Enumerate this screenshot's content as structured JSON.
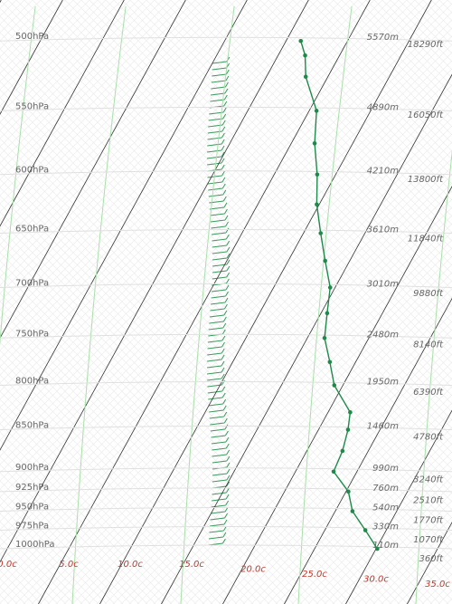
{
  "chart_data": {
    "type": "skewt",
    "pressure_ticks": [
      {
        "value": 500,
        "label": "500hPa"
      },
      {
        "value": 550,
        "label": "550hPa"
      },
      {
        "value": 600,
        "label": "600hPa"
      },
      {
        "value": 650,
        "label": "650hPa"
      },
      {
        "value": 700,
        "label": "700hPa"
      },
      {
        "value": 750,
        "label": "750hPa"
      },
      {
        "value": 800,
        "label": "800hPa"
      },
      {
        "value": 850,
        "label": "850hPa"
      },
      {
        "value": 900,
        "label": "900hPa"
      },
      {
        "value": 925,
        "label": "925hPa"
      },
      {
        "value": 950,
        "label": "950hPa"
      },
      {
        "value": 975,
        "label": "975hPa"
      },
      {
        "value": 1000,
        "label": "1000hPa"
      }
    ],
    "xticks": [
      {
        "value": 0,
        "label": "0.0c"
      },
      {
        "value": 5,
        "label": "5.0c"
      },
      {
        "value": 10,
        "label": "10.0c"
      },
      {
        "value": 15,
        "label": "15.0c"
      },
      {
        "value": 20,
        "label": "20.0c"
      },
      {
        "value": 25,
        "label": "25.0c"
      },
      {
        "value": 30,
        "label": "30.0c"
      },
      {
        "value": 35,
        "label": "35.0c"
      }
    ],
    "heights_m": [
      "5570m",
      "4890m",
      "4210m",
      "3610m",
      "3010m",
      "2480m",
      "1950m",
      "1460m",
      "990m",
      "760m",
      "540m",
      "330m",
      "110m"
    ],
    "heights_ft": [
      "18290ft",
      "16050ft",
      "13800ft",
      "11840ft",
      "9880ft",
      "8140ft",
      "6390ft",
      "4780ft",
      "3240ft",
      "2510ft",
      "1770ft",
      "1070ft",
      "360ft"
    ],
    "color": "#1e8a4a",
    "pressure": [
      1000,
      975,
      950,
      925,
      900,
      875,
      850,
      830,
      800,
      775,
      750,
      725,
      700,
      675,
      650,
      625,
      600,
      575,
      550,
      525,
      510,
      500
    ],
    "temperature": [
      30.1,
      28.3,
      26.4,
      25.2,
      23.1,
      22.9,
      22.4,
      21.8,
      19.3,
      17.9,
      16.4,
      15.5,
      14.6,
      13.0,
      11.4,
      9.8,
      8.5,
      6.9,
      5.6,
      3.2,
      2.2,
      1.2
    ]
  }
}
